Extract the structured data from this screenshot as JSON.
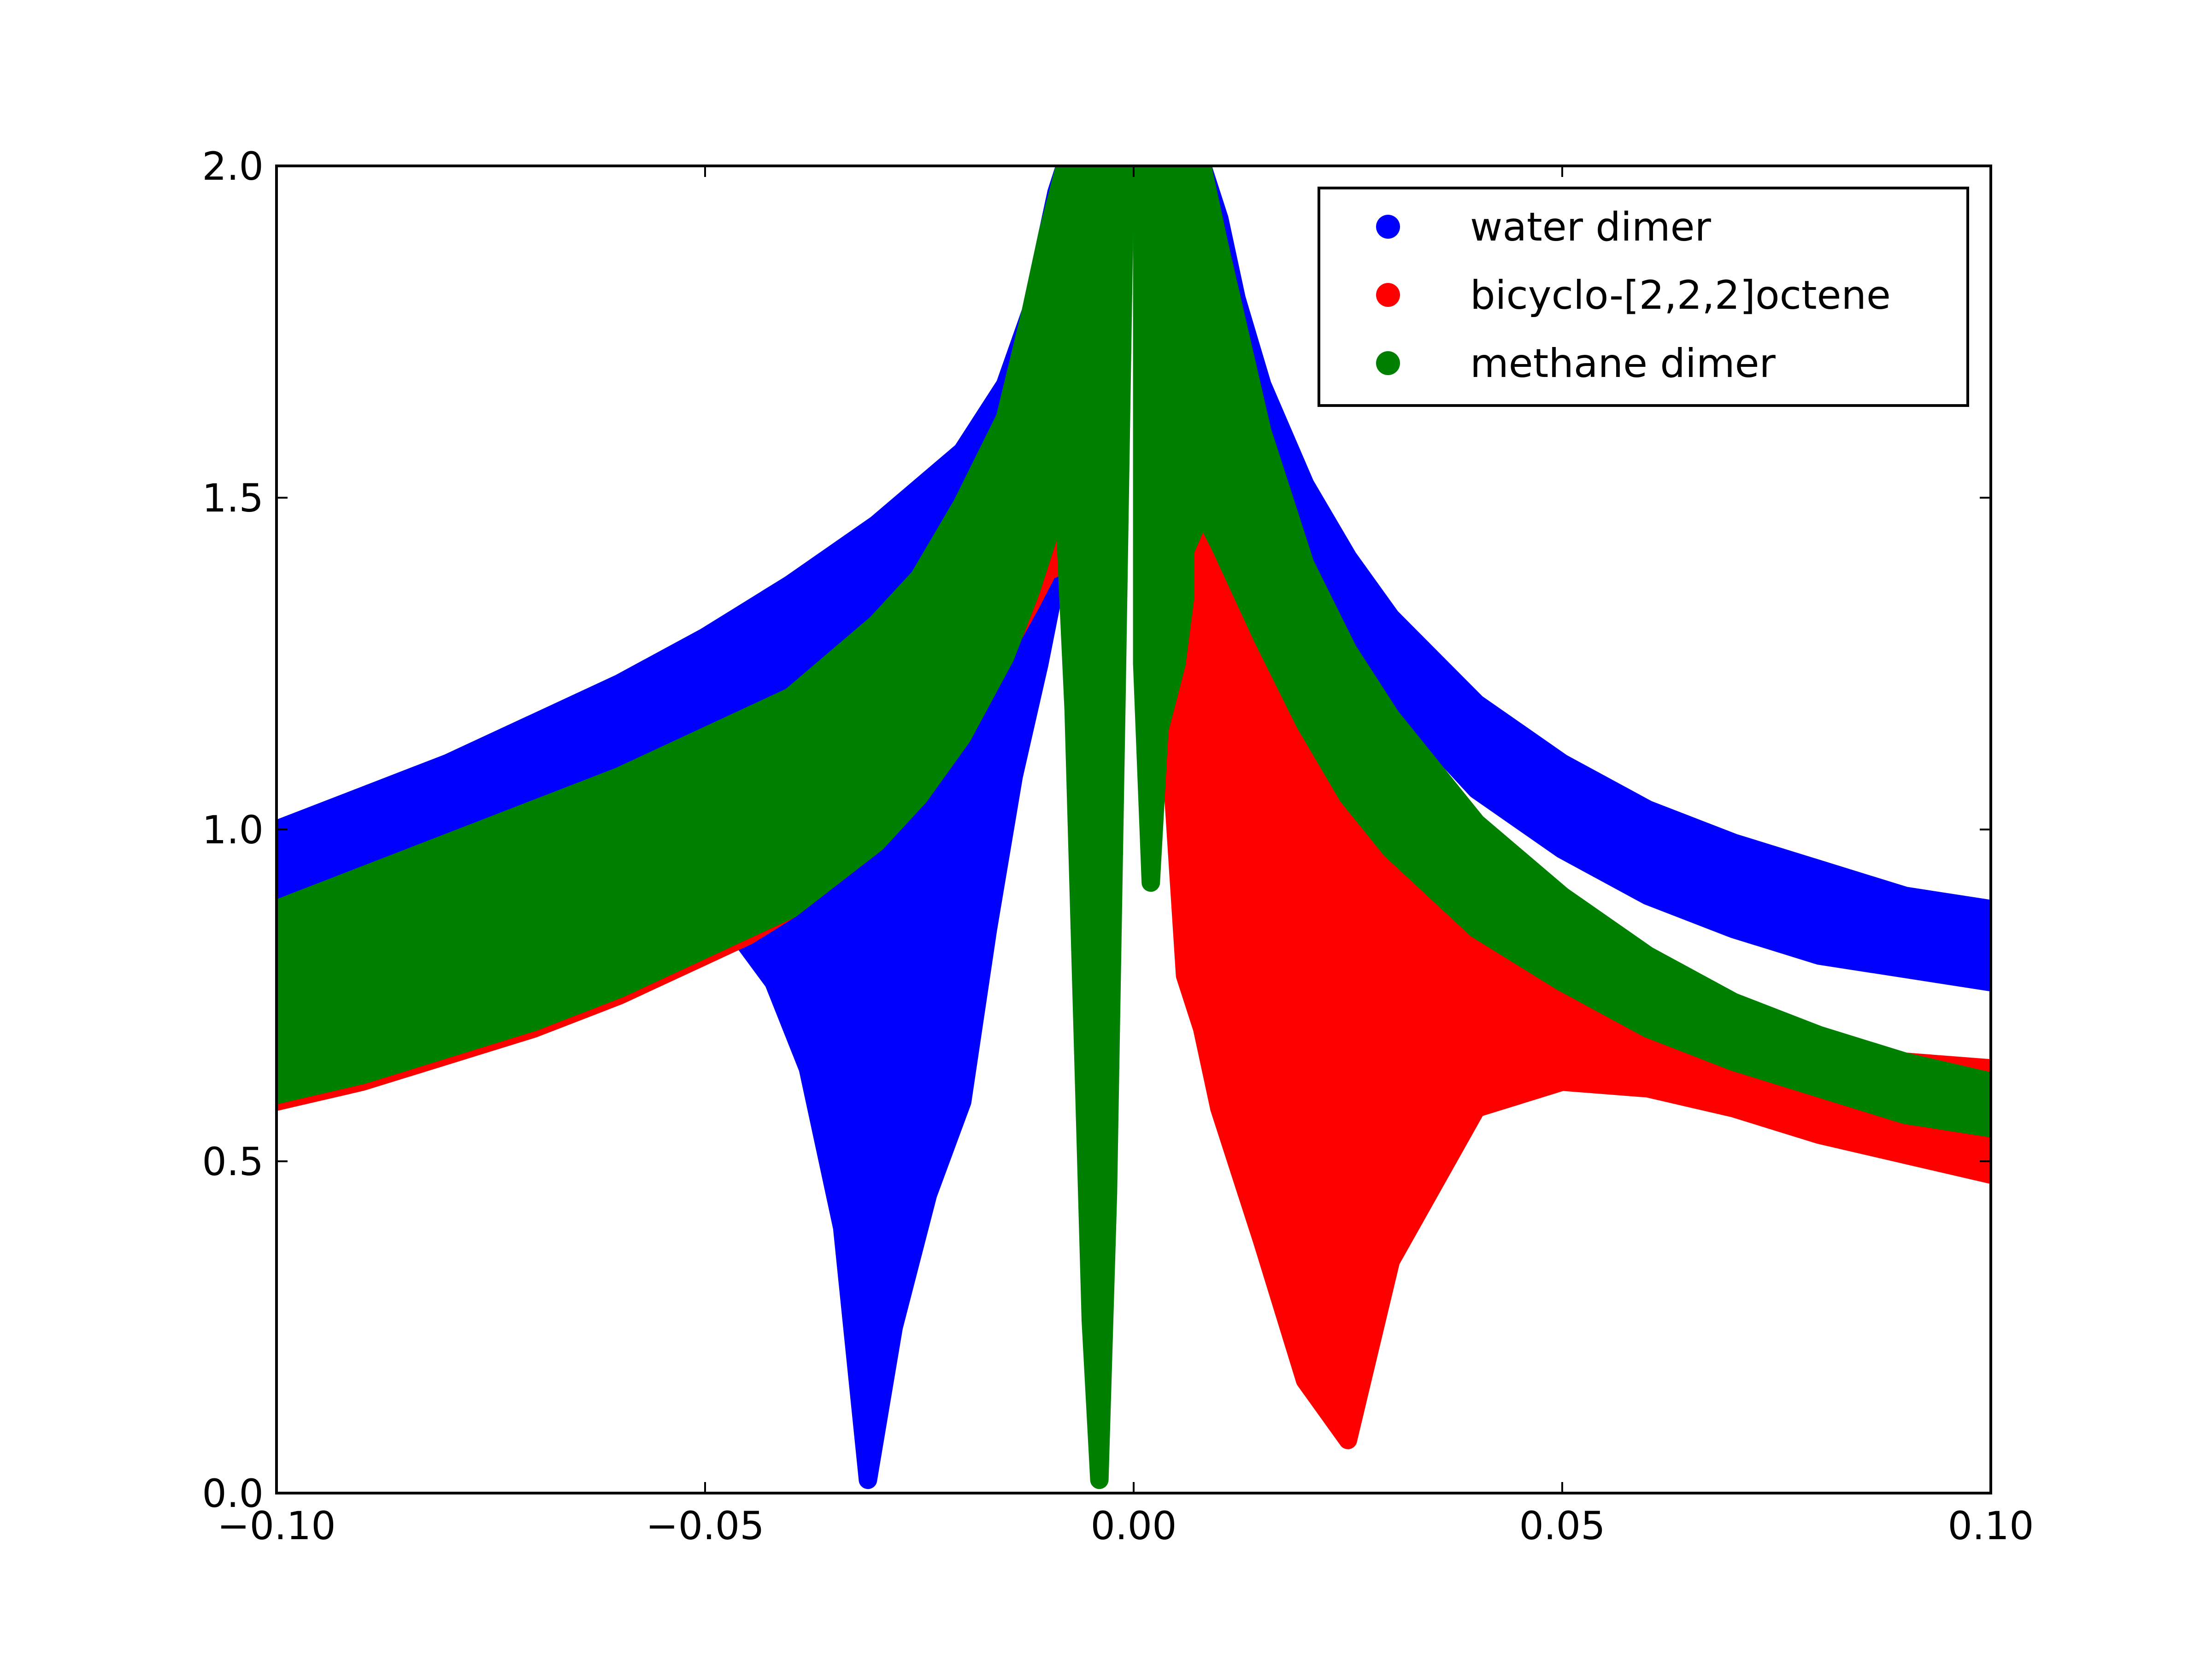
{
  "chart_data": {
    "type": "scatter",
    "title": "",
    "xlabel": "",
    "ylabel": "",
    "xlim": [
      -0.1,
      0.1
    ],
    "ylim": [
      0.0,
      2.0
    ],
    "x_ticks": [
      -0.1,
      -0.05,
      0.0,
      0.05,
      0.1
    ],
    "x_tick_labels": [
      "−0.10",
      "−0.05",
      "0.00",
      "0.05",
      "0.10"
    ],
    "y_ticks": [
      0.0,
      0.5,
      1.0,
      1.5,
      2.0
    ],
    "y_tick_labels": [
      "0.0",
      "0.5",
      "1.0",
      "1.5",
      "2.0"
    ],
    "grid": false,
    "legend_position": "top-right",
    "series": [
      {
        "name": "water dimer",
        "color": "#0000ff",
        "bands": [
          {
            "x": [
              -0.1,
              -0.09,
              -0.08,
              -0.07,
              -0.06,
              -0.05,
              -0.04,
              -0.03,
              -0.02,
              -0.015,
              -0.012,
              -0.01,
              -0.009,
              -0.008
            ],
            "upper": [
              1.0,
              1.05,
              1.1,
              1.16,
              1.22,
              1.29,
              1.37,
              1.46,
              1.57,
              1.67,
              1.78,
              1.9,
              1.96,
              2.0
            ],
            "lower": [
              0.88,
              0.92,
              0.96,
              1.01,
              1.06,
              1.12,
              1.2,
              1.29,
              1.41,
              1.51,
              1.62,
              1.73,
              1.82,
              1.9
            ]
          },
          {
            "x": [
              -0.046,
              -0.042,
              -0.038,
              -0.034,
              -0.031,
              -0.028,
              -0.024,
              -0.02,
              -0.017,
              -0.014,
              -0.011,
              -0.009
            ],
            "upper": [
              0.84,
              0.88,
              0.93,
              0.98,
              1.02,
              1.06,
              1.13,
              1.19,
              1.27,
              1.33,
              1.4,
              1.43
            ],
            "lower": [
              0.84,
              0.77,
              0.64,
              0.4,
              0.02,
              0.25,
              0.45,
              0.59,
              0.85,
              1.08,
              1.25,
              1.38
            ]
          },
          {
            "x": [
              0.008,
              0.01,
              0.012,
              0.015,
              0.02,
              0.025,
              0.03,
              0.04,
              0.05,
              0.06,
              0.07,
              0.08,
              0.09,
              0.1
            ],
            "upper": [
              2.0,
              1.92,
              1.8,
              1.67,
              1.52,
              1.41,
              1.32,
              1.19,
              1.1,
              1.03,
              0.98,
              0.94,
              0.9,
              0.88
            ],
            "lower": [
              1.9,
              1.78,
              1.66,
              1.54,
              1.39,
              1.28,
              1.2,
              1.06,
              0.97,
              0.9,
              0.85,
              0.81,
              0.79,
              0.77
            ]
          }
        ]
      },
      {
        "name": "bicyclo-[2,2,2]octene",
        "color": "#ff0000",
        "bands": [
          {
            "x": [
              -0.1,
              -0.09,
              -0.08,
              -0.07,
              -0.06,
              -0.05,
              -0.045,
              -0.04,
              -0.035,
              -0.03,
              -0.025,
              -0.02,
              -0.015,
              -0.012,
              -0.01,
              -0.008
            ],
            "upper": [
              0.62,
              0.65,
              0.69,
              0.73,
              0.78,
              0.84,
              0.87,
              0.91,
              0.96,
              1.02,
              1.1,
              1.19,
              1.3,
              1.37,
              1.42,
              1.48
            ],
            "lower": [
              0.59,
              0.62,
              0.66,
              0.7,
              0.75,
              0.81,
              0.84,
              0.88,
              0.93,
              0.98,
              1.06,
              1.15,
              1.27,
              1.34,
              1.39,
              1.4
            ]
          },
          {
            "x": [
              0.004,
              0.006,
              0.008,
              0.01,
              0.015,
              0.02,
              0.025,
              0.03,
              0.04,
              0.05,
              0.06,
              0.07,
              0.08,
              0.09,
              0.1
            ],
            "upper": [
              1.18,
              1.4,
              1.49,
              1.44,
              1.3,
              1.18,
              1.08,
              1.0,
              0.88,
              0.8,
              0.74,
              0.7,
              0.67,
              0.65,
              0.64
            ],
            "lower": [
              1.18,
              0.78,
              0.7,
              0.58,
              0.38,
              0.17,
              0.08,
              0.35,
              0.58,
              0.62,
              0.61,
              0.58,
              0.54,
              0.51,
              0.48
            ]
          }
        ]
      },
      {
        "name": "methane dimer",
        "color": "#008000",
        "bands": [
          {
            "x": [
              -0.1,
              -0.09,
              -0.08,
              -0.07,
              -0.06,
              -0.05,
              -0.04,
              -0.03,
              -0.025,
              -0.02,
              -0.015,
              -0.012,
              -0.01,
              -0.008
            ],
            "upper": [
              0.88,
              0.93,
              0.98,
              1.03,
              1.08,
              1.14,
              1.2,
              1.31,
              1.38,
              1.49,
              1.62,
              1.78,
              1.9,
              2.0
            ],
            "lower": [
              0.6,
              0.63,
              0.67,
              0.71,
              0.76,
              0.82,
              0.88,
              0.98,
              1.05,
              1.14,
              1.26,
              1.36,
              1.44,
              1.48
            ]
          },
          {
            "x": [
              -0.008,
              -0.007,
              -0.006,
              -0.005,
              -0.004,
              -0.003,
              -0.002,
              -0.001
            ],
            "upper": [
              2.0,
              2.0,
              2.0,
              2.0,
              2.0,
              2.0,
              2.0,
              2.0
            ],
            "lower": [
              1.46,
              1.18,
              0.72,
              0.26,
              0.02,
              0.45,
              1.2,
              2.0
            ]
          },
          {
            "x": [
              0.001,
              0.002,
              0.003,
              0.004,
              0.005,
              0.006
            ],
            "upper": [
              2.0,
              2.0,
              2.0,
              2.0,
              2.0,
              2.0
            ],
            "lower": [
              1.25,
              0.92,
              1.15,
              1.2,
              1.25,
              1.35
            ]
          },
          {
            "x": [
              0.004,
              0.006,
              0.008,
              0.01,
              0.015,
              0.02,
              0.025,
              0.03,
              0.04,
              0.05,
              0.06,
              0.07,
              0.08,
              0.09,
              0.1
            ],
            "upper": [
              2.0,
              2.0,
              2.0,
              1.88,
              1.6,
              1.4,
              1.27,
              1.17,
              1.01,
              0.9,
              0.81,
              0.74,
              0.69,
              0.65,
              0.62
            ],
            "lower": [
              1.2,
              1.42,
              1.48,
              1.43,
              1.29,
              1.16,
              1.05,
              0.97,
              0.85,
              0.77,
              0.7,
              0.65,
              0.61,
              0.57,
              0.55
            ]
          }
        ]
      }
    ]
  }
}
